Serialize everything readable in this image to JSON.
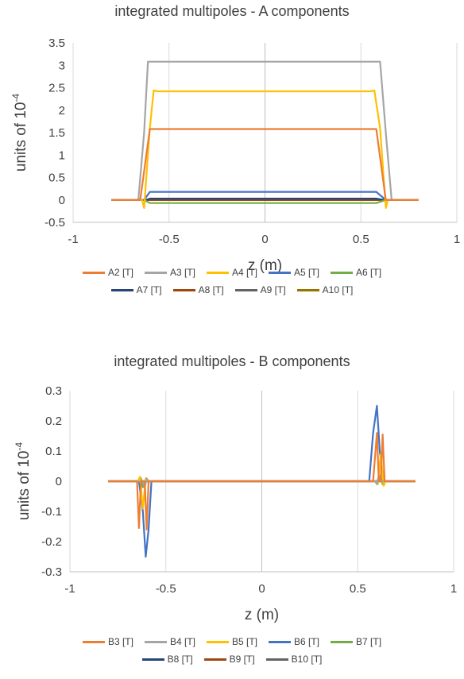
{
  "chart_data": [
    {
      "type": "line",
      "title": "integrated multipoles - A components",
      "xlabel": "z (m)",
      "ylabel_main": "units of 10",
      "ylabel_sup": "-4",
      "xlim": [
        -1,
        1
      ],
      "ylim": [
        -0.5,
        3.5
      ],
      "xticks": [
        -1,
        -0.5,
        0,
        0.5,
        1
      ],
      "xtick_labels": [
        "-1",
        "-0.5",
        "0",
        "0.5",
        "1"
      ],
      "yticks": [
        -0.5,
        0,
        0.5,
        1,
        1.5,
        2,
        2.5,
        3,
        3.5
      ],
      "ytick_labels": [
        "-0.5",
        "0",
        "0.5",
        "1",
        "1.5",
        "2",
        "2.5",
        "3",
        "3.5"
      ],
      "grid": "vertical",
      "legend_position": "bottom",
      "series": [
        {
          "name": "A2 [T]",
          "color": "#ED7D31",
          "points": [
            [
              -0.8,
              0
            ],
            [
              -0.65,
              0
            ],
            [
              -0.6,
              1.58
            ],
            [
              0.58,
              1.58
            ],
            [
              0.63,
              0
            ],
            [
              0.8,
              0
            ]
          ]
        },
        {
          "name": "A3 [T]",
          "color": "#A5A5A5",
          "points": [
            [
              -0.8,
              0
            ],
            [
              -0.66,
              0
            ],
            [
              -0.63,
              1.5
            ],
            [
              -0.61,
              3.08
            ],
            [
              0.6,
              3.08
            ],
            [
              0.63,
              1.5
            ],
            [
              0.66,
              0
            ],
            [
              0.8,
              0
            ]
          ]
        },
        {
          "name": "A4 [T]",
          "color": "#FFC000",
          "points": [
            [
              -0.8,
              0
            ],
            [
              -0.64,
              0
            ],
            [
              -0.63,
              -0.18
            ],
            [
              -0.6,
              1.6
            ],
            [
              -0.58,
              2.44
            ],
            [
              -0.56,
              2.42
            ],
            [
              0.55,
              2.42
            ],
            [
              0.57,
              2.44
            ],
            [
              0.6,
              1.6
            ],
            [
              0.63,
              -0.18
            ],
            [
              0.64,
              0
            ],
            [
              0.8,
              0
            ]
          ]
        },
        {
          "name": "A5 [T]",
          "color": "#4472C4",
          "points": [
            [
              -0.8,
              0
            ],
            [
              -0.63,
              0
            ],
            [
              -0.6,
              0.18
            ],
            [
              0.58,
              0.18
            ],
            [
              0.63,
              0
            ],
            [
              0.8,
              0
            ]
          ]
        },
        {
          "name": "A6 [T]",
          "color": "#70AD47",
          "points": [
            [
              -0.8,
              0
            ],
            [
              -0.63,
              0
            ],
            [
              -0.6,
              -0.07
            ],
            [
              0.58,
              -0.07
            ],
            [
              0.63,
              0
            ],
            [
              0.8,
              0
            ]
          ]
        },
        {
          "name": "A7 [T]",
          "color": "#264478",
          "points": [
            [
              -0.8,
              0
            ],
            [
              -0.62,
              0
            ],
            [
              -0.6,
              0.03
            ],
            [
              0.58,
              0.03
            ],
            [
              0.62,
              0
            ],
            [
              0.8,
              0
            ]
          ]
        },
        {
          "name": "A8 [T]",
          "color": "#9E480E",
          "points": [
            [
              -0.8,
              0
            ],
            [
              0.8,
              0
            ]
          ]
        },
        {
          "name": "A9 [T]",
          "color": "#636363",
          "points": [
            [
              -0.8,
              0
            ],
            [
              0.8,
              0
            ]
          ]
        },
        {
          "name": "A10 [T]",
          "color": "#997300",
          "points": [
            [
              -0.8,
              0
            ],
            [
              0.8,
              0
            ]
          ]
        }
      ]
    },
    {
      "type": "line",
      "title": "integrated multipoles - B components",
      "xlabel": "z (m)",
      "ylabel_main": "units of 10",
      "ylabel_sup": "-4",
      "xlim": [
        -1,
        1
      ],
      "ylim": [
        -0.3,
        0.3
      ],
      "xticks": [
        -1,
        -0.5,
        0,
        0.5,
        1
      ],
      "xtick_labels": [
        "-1",
        "-0.5",
        "0",
        "0.5",
        "1"
      ],
      "yticks": [
        -0.3,
        -0.2,
        -0.1,
        0,
        0.1,
        0.2,
        0.3
      ],
      "ytick_labels": [
        "-0.3",
        "-0.2",
        "-0.1",
        "0",
        "0.1",
        "0.2",
        "0.3"
      ],
      "grid": "vertical",
      "legend_position": "bottom",
      "series": [
        {
          "name": "B3 [T]",
          "color": "#ED7D31",
          "points": [
            [
              -0.8,
              0
            ],
            [
              -0.65,
              0
            ],
            [
              -0.64,
              -0.155
            ],
            [
              -0.63,
              0
            ],
            [
              -0.61,
              0
            ],
            [
              -0.6,
              -0.16
            ],
            [
              -0.59,
              0
            ],
            [
              0.58,
              0
            ],
            [
              0.6,
              0.16
            ],
            [
              0.61,
              0
            ],
            [
              0.62,
              0
            ],
            [
              0.63,
              0.155
            ],
            [
              0.64,
              0
            ],
            [
              0.8,
              0
            ]
          ]
        },
        {
          "name": "B4 [T]",
          "color": "#A5A5A5",
          "points": [
            [
              -0.8,
              0
            ],
            [
              -0.62,
              0
            ],
            [
              -0.61,
              -0.02
            ],
            [
              -0.6,
              0.01
            ],
            [
              -0.59,
              0
            ],
            [
              0.59,
              0
            ],
            [
              0.6,
              -0.01
            ],
            [
              0.61,
              0.02
            ],
            [
              0.62,
              0
            ],
            [
              0.8,
              0
            ]
          ]
        },
        {
          "name": "B5 [T]",
          "color": "#FFC000",
          "points": [
            [
              -0.8,
              0
            ],
            [
              -0.645,
              0
            ],
            [
              -0.635,
              0.015
            ],
            [
              -0.62,
              -0.09
            ],
            [
              -0.605,
              0.01
            ],
            [
              -0.59,
              0
            ],
            [
              0.59,
              0
            ],
            [
              0.605,
              -0.01
            ],
            [
              0.62,
              0.09
            ],
            [
              0.635,
              -0.015
            ],
            [
              0.645,
              0
            ],
            [
              0.8,
              0
            ]
          ]
        },
        {
          "name": "B6 [T]",
          "color": "#4472C4",
          "points": [
            [
              -0.8,
              0
            ],
            [
              -0.64,
              0
            ],
            [
              -0.62,
              -0.1
            ],
            [
              -0.605,
              -0.25
            ],
            [
              -0.59,
              -0.16
            ],
            [
              -0.575,
              0
            ],
            [
              0.56,
              0
            ],
            [
              0.58,
              0.16
            ],
            [
              0.6,
              0.25
            ],
            [
              0.615,
              0.1
            ],
            [
              0.635,
              0
            ],
            [
              0.8,
              0
            ]
          ]
        },
        {
          "name": "B7 [T]",
          "color": "#70AD47",
          "points": [
            [
              -0.8,
              0
            ],
            [
              -0.64,
              0
            ],
            [
              -0.63,
              0.01
            ],
            [
              -0.62,
              -0.02
            ],
            [
              -0.61,
              0
            ],
            [
              0.61,
              0
            ],
            [
              0.62,
              0.02
            ],
            [
              0.63,
              -0.01
            ],
            [
              0.64,
              0
            ],
            [
              0.8,
              0
            ]
          ]
        },
        {
          "name": "B8 [T]",
          "color": "#264478",
          "points": [
            [
              -0.8,
              0
            ],
            [
              0.8,
              0
            ]
          ]
        },
        {
          "name": "B9 [T]",
          "color": "#9E480E",
          "points": [
            [
              -0.8,
              0
            ],
            [
              0.8,
              0
            ]
          ]
        },
        {
          "name": "B10 [T]",
          "color": "#636363",
          "points": [
            [
              -0.8,
              0
            ],
            [
              0.8,
              0
            ]
          ]
        }
      ]
    }
  ]
}
